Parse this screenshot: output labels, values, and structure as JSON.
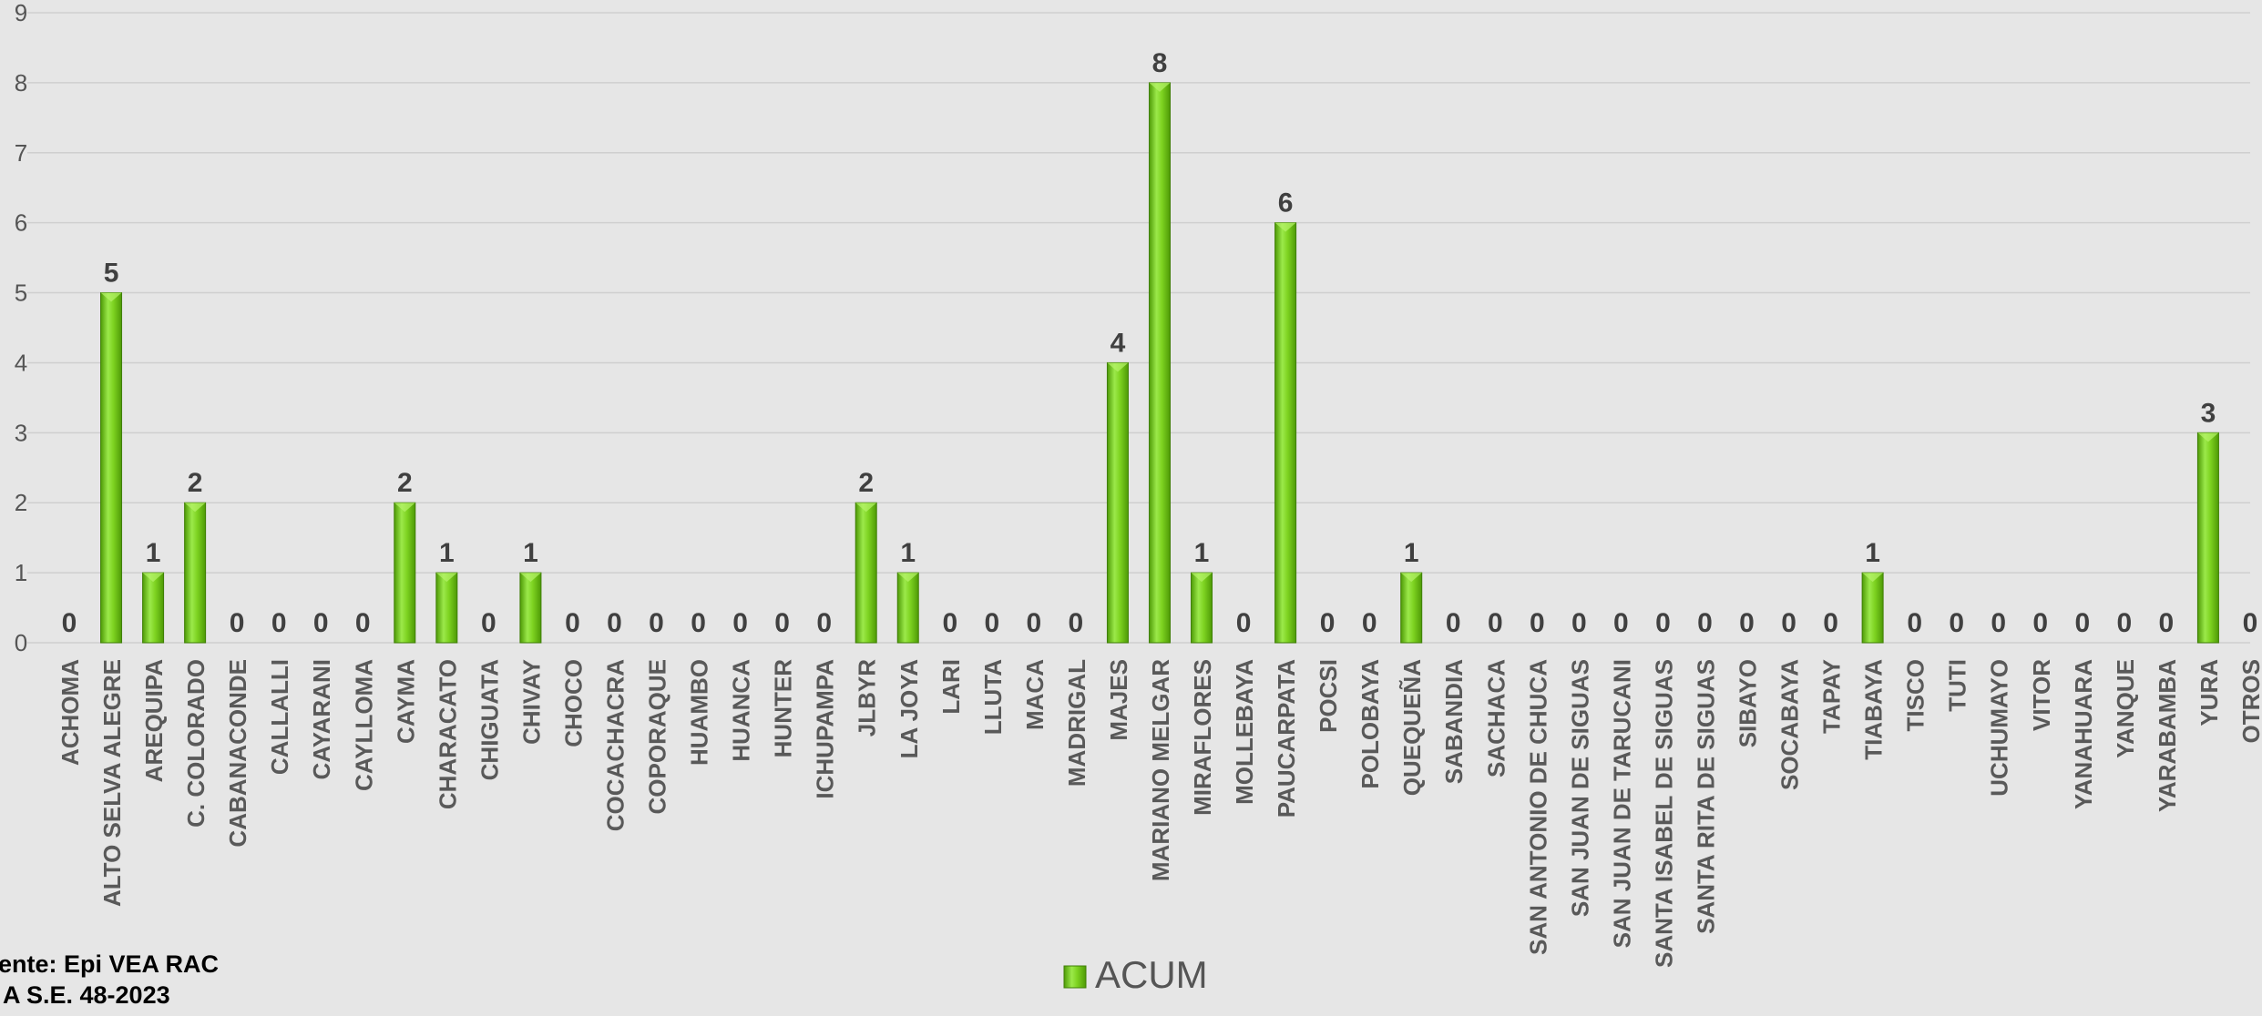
{
  "chart_data": {
    "type": "bar",
    "categories": [
      "ACHOMA",
      "ALTO SELVA ALEGRE",
      "AREQUIPA",
      "C. COLORADO",
      "CABANACONDE",
      "CALLALLI",
      "CAYARANI",
      "CAYLLOMA",
      "CAYMA",
      "CHARACATO",
      "CHIGUATA",
      "CHIVAY",
      "CHOCO",
      "COCACHACRA",
      "COPORAQUE",
      "HUAMBO",
      "HUANCA",
      "HUNTER",
      "ICHUPAMPA",
      "JLBYR",
      "LA JOYA",
      "LARI",
      "LLUTA",
      "MACA",
      "MADRIGAL",
      "MAJES",
      "MARIANO MELGAR",
      "MIRAFLORES",
      "MOLLEBAYA",
      "PAUCARPATA",
      "POCSI",
      "POLOBAYA",
      "QUEQUEÑA",
      "SABANDIA",
      "SACHACA",
      "SAN ANTONIO DE CHUCA",
      "SAN JUAN DE SIGUAS",
      "SAN JUAN DE TARUCANI",
      "SANTA ISABEL DE SIGUAS",
      "SANTA RITA DE SIGUAS",
      "SIBAYO",
      "SOCABAYA",
      "TAPAY",
      "TIABAYA",
      "TISCO",
      "TUTI",
      "UCHUMAYO",
      "VITOR",
      "YANAHUARA",
      "YANQUE",
      "YARABAMBA",
      "YURA",
      "OTROS"
    ],
    "series": [
      {
        "name": "ACUM",
        "values": [
          0,
          5,
          1,
          2,
          0,
          0,
          0,
          0,
          2,
          1,
          0,
          1,
          0,
          0,
          0,
          0,
          0,
          0,
          0,
          2,
          1,
          0,
          0,
          0,
          0,
          4,
          8,
          1,
          0,
          6,
          0,
          0,
          1,
          0,
          0,
          0,
          0,
          0,
          0,
          0,
          0,
          0,
          0,
          1,
          0,
          0,
          0,
          0,
          0,
          0,
          0,
          3,
          0
        ]
      }
    ],
    "ylim": [
      0,
      9
    ],
    "yticks": [
      0,
      1,
      2,
      3,
      4,
      5,
      6,
      7,
      8,
      9
    ],
    "grid": true,
    "legend_position": "bottom",
    "bar_color": "#7ed321"
  },
  "source": {
    "line1": "ente: Epi VEA RAC",
    "line2": "A S.E. 48-2023"
  }
}
